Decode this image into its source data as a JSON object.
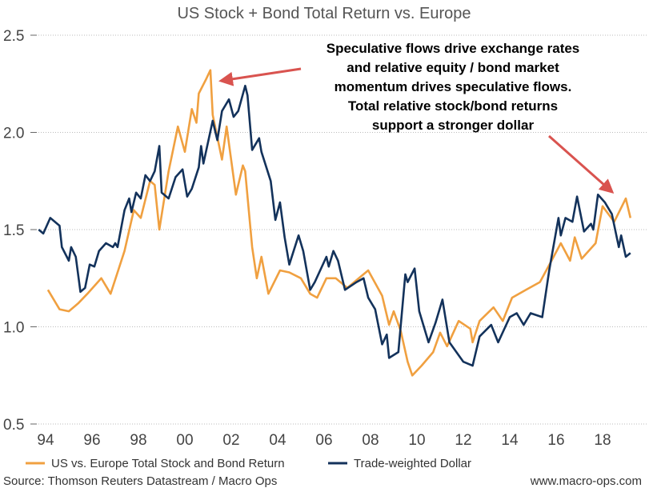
{
  "chart_data": {
    "type": "line",
    "title": "US Stock + Bond Total Return vs. Europe",
    "xlabel": "",
    "ylabel": "",
    "ylim": [
      0.5,
      2.5
    ],
    "yticks": [
      "2.5",
      "2.0",
      "1.5",
      "1.0",
      "0.5"
    ],
    "xticks": [
      "94",
      "96",
      "98",
      "00",
      "02",
      "04",
      "06",
      "08",
      "10",
      "12",
      "14",
      "16",
      "18"
    ],
    "grid": true,
    "legend_position": "bottom",
    "annotations": [
      "Speculative flows drive exchange rates",
      "and relative equity / bond market",
      "momentum drives speculative flows.",
      "Total relative stock/bond returns",
      "support a stronger dollar"
    ],
    "arrow_color": "#d9534f",
    "series": [
      {
        "name": "US vs. Europe Total Stock and Bond Return",
        "color": "#f0a040",
        "x": [
          1994.1,
          1994.6,
          1995.0,
          1995.4,
          1995.8,
          1996.4,
          1996.8,
          1997.1,
          1997.4,
          1997.8,
          1998.1,
          1998.5,
          1998.7,
          1998.9,
          1999.3,
          1999.7,
          2000.0,
          2000.3,
          2000.5,
          2000.6,
          2000.9,
          2001.1,
          2001.2,
          2001.6,
          2001.8,
          2002.2,
          2002.5,
          2002.6,
          2002.9,
          2003.1,
          2003.3,
          2003.6,
          2004.1,
          2004.5,
          2005.0,
          2005.4,
          2005.7,
          2006.1,
          2006.5,
          2007.0,
          2007.6,
          2007.9,
          2008.5,
          2008.8,
          2009.0,
          2009.3,
          2009.6,
          2009.8,
          2010.2,
          2010.7,
          2011.0,
          2011.3,
          2011.8,
          2012.3,
          2012.4,
          2012.7,
          2013.3,
          2013.7,
          2014.1,
          2014.7,
          2015.3,
          2015.8,
          2016.2,
          2016.6,
          2016.8,
          2017.1,
          2017.7,
          2018.0,
          2018.5,
          2019.0,
          2019.2
        ],
        "values": [
          1.19,
          1.09,
          1.08,
          1.12,
          1.17,
          1.25,
          1.17,
          1.28,
          1.39,
          1.6,
          1.56,
          1.75,
          1.73,
          1.5,
          1.8,
          2.03,
          1.9,
          2.12,
          2.05,
          2.2,
          2.27,
          2.32,
          2.09,
          1.86,
          2.03,
          1.68,
          1.83,
          1.8,
          1.41,
          1.25,
          1.36,
          1.17,
          1.29,
          1.28,
          1.25,
          1.17,
          1.15,
          1.25,
          1.25,
          1.2,
          1.26,
          1.29,
          1.16,
          1.01,
          1.08,
          0.98,
          0.82,
          0.75,
          0.8,
          0.87,
          0.97,
          0.9,
          1.03,
          0.99,
          0.92,
          1.03,
          1.1,
          1.03,
          1.15,
          1.19,
          1.23,
          1.34,
          1.43,
          1.34,
          1.46,
          1.35,
          1.43,
          1.62,
          1.54,
          1.66,
          1.56
        ]
      },
      {
        "name": "Trade-weighted Dollar",
        "color": "#13325b",
        "x": [
          1993.7,
          1993.9,
          1994.2,
          1994.6,
          1994.7,
          1995.0,
          1995.1,
          1995.3,
          1995.5,
          1995.7,
          1995.9,
          1996.1,
          1996.3,
          1996.6,
          1996.9,
          1997.0,
          1997.1,
          1997.4,
          1997.6,
          1997.7,
          1997.9,
          1998.1,
          1998.3,
          1998.5,
          1998.7,
          1998.9,
          1999.0,
          1999.3,
          1999.6,
          1999.9,
          2000.1,
          2000.3,
          2000.6,
          2000.7,
          2000.8,
          2001.2,
          2001.4,
          2001.6,
          2001.9,
          2002.1,
          2002.3,
          2002.6,
          2002.7,
          2002.9,
          2003.2,
          2003.3,
          2003.7,
          2003.9,
          2004.1,
          2004.3,
          2004.5,
          2004.9,
          2005.1,
          2005.4,
          2005.6,
          2006.1,
          2006.2,
          2006.4,
          2006.6,
          2006.9,
          2007.4,
          2007.7,
          2007.9,
          2008.2,
          2008.5,
          2008.7,
          2008.8,
          2009.2,
          2009.5,
          2009.6,
          2009.9,
          2010.1,
          2010.5,
          2010.8,
          2011.1,
          2011.4,
          2012.0,
          2012.4,
          2012.7,
          2013.2,
          2013.5,
          2014.0,
          2014.3,
          2014.6,
          2014.9,
          2015.4,
          2015.7,
          2016.1,
          2016.2,
          2016.4,
          2016.7,
          2016.9,
          2017.2,
          2017.5,
          2017.6,
          2017.8,
          2018.1,
          2018.4,
          2018.7,
          2018.8,
          2019.0,
          2019.2
        ],
        "values": [
          1.5,
          1.48,
          1.56,
          1.52,
          1.41,
          1.34,
          1.41,
          1.36,
          1.18,
          1.2,
          1.32,
          1.31,
          1.39,
          1.43,
          1.41,
          1.43,
          1.41,
          1.6,
          1.66,
          1.59,
          1.69,
          1.66,
          1.78,
          1.75,
          1.8,
          1.93,
          1.69,
          1.66,
          1.77,
          1.81,
          1.67,
          1.71,
          1.82,
          1.93,
          1.84,
          2.06,
          1.96,
          2.11,
          2.17,
          2.08,
          2.11,
          2.24,
          2.19,
          1.91,
          1.97,
          1.9,
          1.75,
          1.55,
          1.64,
          1.46,
          1.32,
          1.47,
          1.39,
          1.19,
          1.23,
          1.36,
          1.31,
          1.39,
          1.34,
          1.19,
          1.23,
          1.25,
          1.15,
          1.09,
          0.91,
          0.96,
          0.84,
          0.87,
          1.27,
          1.23,
          1.3,
          1.08,
          0.92,
          1.02,
          1.14,
          0.92,
          0.82,
          0.8,
          0.95,
          1.01,
          0.92,
          1.05,
          1.07,
          1.01,
          1.07,
          1.05,
          1.29,
          1.56,
          1.47,
          1.56,
          1.54,
          1.67,
          1.49,
          1.53,
          1.5,
          1.68,
          1.64,
          1.58,
          1.41,
          1.47,
          1.36,
          1.38
        ]
      }
    ]
  },
  "footer": {
    "source": "Source: Thomson Reuters Datastream / Macro Ops",
    "website": "www.macro-ops.com"
  }
}
